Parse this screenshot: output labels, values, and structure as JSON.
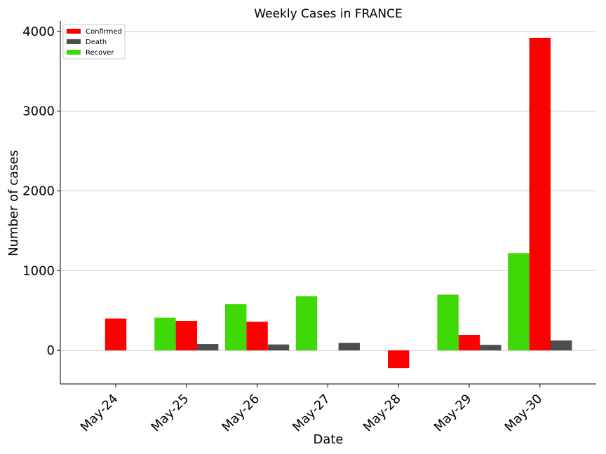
{
  "chart_data": {
    "type": "bar",
    "title": "Weekly Cases in FRANCE",
    "xlabel": "Date",
    "ylabel": "Number of cases",
    "categories": [
      "May-24",
      "May-25",
      "May-26",
      "May-27",
      "May-28",
      "May-29",
      "May-30"
    ],
    "series": [
      {
        "name": "Recover",
        "color": "#3fd907",
        "values": [
          0,
          410,
          580,
          680,
          0,
          700,
          1220
        ]
      },
      {
        "name": "Confirmed",
        "color": "#ff0000",
        "values": [
          400,
          370,
          360,
          0,
          -220,
          195,
          3920
        ]
      },
      {
        "name": "Death",
        "color": "#4d4d4d",
        "values": [
          0,
          80,
          75,
          95,
          0,
          70,
          125
        ]
      }
    ],
    "legend_order": [
      "Confirmed",
      "Death",
      "Recover"
    ],
    "legend_position": "top-left",
    "yticks": [
      0,
      1000,
      2000,
      3000,
      4000
    ],
    "ylim": [
      -420,
      4130
    ],
    "grid": "horizontal"
  }
}
